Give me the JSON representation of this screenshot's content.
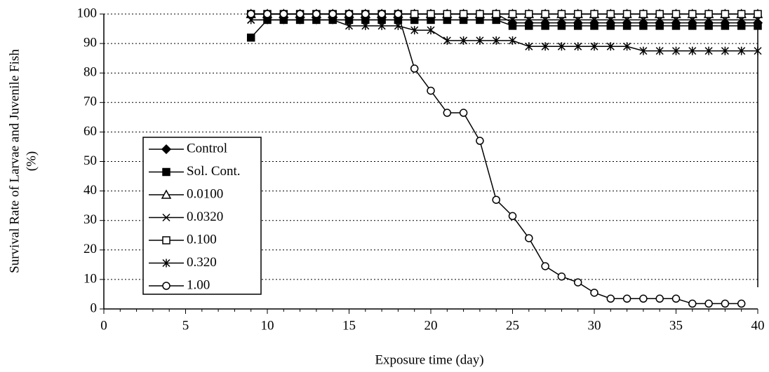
{
  "chart_data": {
    "type": "line",
    "xlabel": "Exposure time (day)",
    "ylabel": [
      "Survival Rate of Larvae and Juvenile Fish",
      "(%)"
    ],
    "xlim": [
      0,
      40
    ],
    "xticks": [
      0,
      5,
      10,
      15,
      20,
      25,
      30,
      35,
      40
    ],
    "ylim": [
      0,
      100
    ],
    "yticks": [
      0,
      10,
      20,
      30,
      40,
      50,
      60,
      70,
      80,
      90,
      100
    ],
    "grid": true,
    "legend": "left",
    "series": [
      {
        "name": "Control",
        "color": "#000000",
        "marker": "diamond",
        "x": [
          9,
          10,
          11,
          12,
          13,
          14,
          15,
          16,
          17,
          18,
          19,
          20,
          21,
          22,
          23,
          24,
          25,
          26,
          27,
          28,
          29,
          30,
          31,
          32,
          33,
          34,
          35,
          36,
          37,
          38,
          39,
          40
        ],
        "values": [
          100,
          100,
          100,
          100,
          100,
          100,
          100,
          100,
          100,
          100,
          100,
          100,
          100,
          100,
          100,
          100,
          97,
          97,
          97,
          97,
          97,
          97,
          97,
          97,
          97,
          97,
          97,
          97,
          97,
          97,
          97,
          97
        ]
      },
      {
        "name": "Sol. Cont.",
        "color": "#000000",
        "marker": "square-filled",
        "x": [
          9,
          10,
          11,
          12,
          13,
          14,
          15,
          16,
          17,
          18,
          19,
          20,
          21,
          22,
          23,
          24,
          25,
          26,
          27,
          28,
          29,
          30,
          31,
          32,
          33,
          34,
          35,
          36,
          37,
          38,
          39,
          40
        ],
        "values": [
          92,
          98,
          98,
          98,
          98,
          98,
          98,
          98,
          98,
          98,
          98,
          98,
          98,
          98,
          98,
          98,
          96,
          96,
          96,
          96,
          96,
          96,
          96,
          96,
          96,
          96,
          96,
          96,
          96,
          96,
          96,
          96
        ]
      },
      {
        "name": "0.0100",
        "color": "#000000",
        "marker": "triangle",
        "x": [
          9,
          10,
          11,
          12,
          13,
          14,
          15,
          16,
          17,
          18,
          19,
          20,
          21,
          22,
          23,
          24,
          25,
          26,
          27,
          28,
          29,
          30,
          31,
          32,
          33,
          34,
          35,
          36,
          37,
          38,
          39,
          40
        ],
        "values": [
          100,
          100,
          100,
          100,
          100,
          100,
          100,
          100,
          100,
          100,
          100,
          100,
          100,
          100,
          100,
          100,
          100,
          100,
          100,
          100,
          100,
          100,
          100,
          100,
          100,
          100,
          100,
          100,
          100,
          100,
          100,
          100
        ]
      },
      {
        "name": "0.0320",
        "color": "#000000",
        "marker": "x",
        "x": [
          9,
          10,
          11,
          12,
          13,
          14,
          15,
          16,
          17,
          18,
          19,
          20,
          21,
          22,
          23,
          24,
          25,
          26,
          27,
          28,
          29,
          30,
          31,
          32,
          33,
          34,
          35,
          36,
          37,
          38,
          39,
          40
        ],
        "values": [
          98,
          98,
          98,
          98,
          98,
          98,
          98,
          98,
          98,
          98,
          98,
          98,
          98,
          98,
          98,
          98,
          98,
          98,
          98,
          98,
          98,
          98,
          98,
          98,
          98,
          98,
          98,
          98,
          98,
          98,
          98,
          98
        ]
      },
      {
        "name": "0.100",
        "color": "#000000",
        "marker": "square-open",
        "x": [
          9,
          10,
          11,
          12,
          13,
          14,
          15,
          16,
          17,
          18,
          19,
          20,
          21,
          22,
          23,
          24,
          25,
          26,
          27,
          28,
          29,
          30,
          31,
          32,
          33,
          34,
          35,
          36,
          37,
          38,
          39,
          40
        ],
        "values": [
          100,
          100,
          100,
          100,
          100,
          100,
          100,
          100,
          100,
          100,
          100,
          100,
          100,
          100,
          100,
          100,
          100,
          100,
          100,
          100,
          100,
          100,
          100,
          100,
          100,
          100,
          100,
          100,
          100,
          100,
          100,
          100
        ]
      },
      {
        "name": "0.320",
        "color": "#000000",
        "marker": "asterisk",
        "x": [
          9,
          10,
          11,
          12,
          13,
          14,
          15,
          16,
          17,
          18,
          19,
          20,
          21,
          22,
          23,
          24,
          25,
          26,
          27,
          28,
          29,
          30,
          31,
          32,
          33,
          34,
          35,
          36,
          37,
          38,
          39,
          40
        ],
        "values": [
          98,
          98,
          98,
          98,
          98,
          98,
          96,
          96,
          96,
          96,
          94.5,
          94.5,
          91,
          91,
          91,
          91,
          91,
          89,
          89,
          89,
          89,
          89,
          89,
          89,
          87.5,
          87.5,
          87.5,
          87.5,
          87.5,
          87.5,
          87.5,
          87.5
        ]
      },
      {
        "name": "1.00",
        "color": "#000000",
        "marker": "circle",
        "x": [
          9,
          10,
          11,
          12,
          13,
          14,
          15,
          16,
          17,
          18,
          19,
          20,
          21,
          22,
          23,
          24,
          25,
          26,
          27,
          28,
          29,
          30,
          31,
          32,
          33,
          34,
          35,
          36,
          37,
          38,
          39
        ],
        "values": [
          100,
          100,
          100,
          100,
          100,
          100,
          100,
          100,
          100,
          100,
          81.5,
          74,
          66.5,
          66.5,
          57,
          37,
          31.5,
          24,
          14.5,
          11,
          9,
          5.5,
          3.5,
          3.5,
          3.5,
          3.5,
          3.5,
          1.8,
          1.8,
          1.8,
          1.8
        ]
      }
    ]
  }
}
